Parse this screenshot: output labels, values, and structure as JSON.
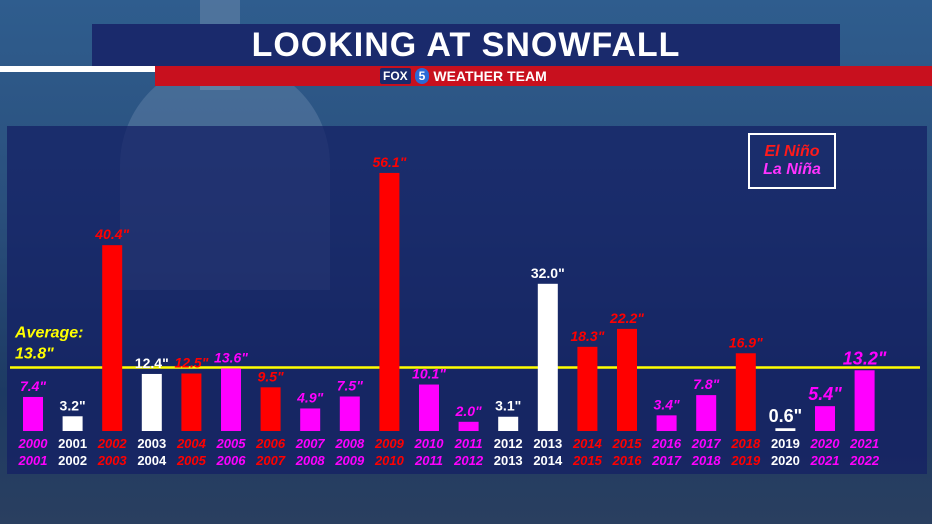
{
  "header": {
    "title": "LOOKING AT SNOWFALL"
  },
  "brand": {
    "fox": "FOX",
    "five": "5",
    "weather": "WEATHER",
    "team": "TEAM"
  },
  "colors": {
    "el_nino": "#ff0000",
    "la_nina": "#ff00ff",
    "neutral": "#ffffff",
    "average_line": "#ffff00"
  },
  "chart_data": {
    "type": "bar",
    "title": "LOOKING AT SNOWFALL",
    "average": {
      "label": "Average:",
      "value": 13.8,
      "display": "13.8\""
    },
    "legend": [
      {
        "name": "El Niño",
        "color": "#ff0000"
      },
      {
        "name": "La Niña",
        "color": "#ff00ff"
      }
    ],
    "legend_placement": "top-right",
    "ylim": [
      0,
      60
    ],
    "bars": [
      {
        "years": [
          "2000",
          "2001"
        ],
        "value": 7.4,
        "label": "7.4\"",
        "phase": "la_nina"
      },
      {
        "years": [
          "2001",
          "2002"
        ],
        "value": 3.2,
        "label": "3.2\"",
        "phase": "neutral"
      },
      {
        "years": [
          "2002",
          "2003"
        ],
        "value": 40.4,
        "label": "40.4\"",
        "phase": "el_nino"
      },
      {
        "years": [
          "2003",
          "2004"
        ],
        "value": 12.4,
        "label": "12.4\"",
        "phase": "neutral"
      },
      {
        "years": [
          "2004",
          "2005"
        ],
        "value": 12.5,
        "label": "12.5\"",
        "phase": "el_nino"
      },
      {
        "years": [
          "2005",
          "2006"
        ],
        "value": 13.6,
        "label": "13.6\"",
        "phase": "la_nina"
      },
      {
        "years": [
          "2006",
          "2007"
        ],
        "value": 9.5,
        "label": "9.5\"",
        "phase": "el_nino"
      },
      {
        "years": [
          "2007",
          "2008"
        ],
        "value": 4.9,
        "label": "4.9\"",
        "phase": "la_nina"
      },
      {
        "years": [
          "2008",
          "2009"
        ],
        "value": 7.5,
        "label": "7.5\"",
        "phase": "la_nina"
      },
      {
        "years": [
          "2009",
          "2010"
        ],
        "value": 56.1,
        "label": "56.1\"",
        "phase": "el_nino"
      },
      {
        "years": [
          "2010",
          "2011"
        ],
        "value": 10.1,
        "label": "10.1\"",
        "phase": "la_nina"
      },
      {
        "years": [
          "2011",
          "2012"
        ],
        "value": 2.0,
        "label": "2.0\"",
        "phase": "la_nina"
      },
      {
        "years": [
          "2012",
          "2013"
        ],
        "value": 3.1,
        "label": "3.1\"",
        "phase": "neutral"
      },
      {
        "years": [
          "2013",
          "2014"
        ],
        "value": 32.0,
        "label": "32.0\"",
        "phase": "neutral"
      },
      {
        "years": [
          "2014",
          "2015"
        ],
        "value": 18.3,
        "label": "18.3\"",
        "phase": "el_nino"
      },
      {
        "years": [
          "2015",
          "2016"
        ],
        "value": 22.2,
        "label": "22.2\"",
        "phase": "el_nino"
      },
      {
        "years": [
          "2016",
          "2017"
        ],
        "value": 3.4,
        "label": "3.4\"",
        "phase": "la_nina"
      },
      {
        "years": [
          "2017",
          "2018"
        ],
        "value": 7.8,
        "label": "7.8\"",
        "phase": "la_nina"
      },
      {
        "years": [
          "2018",
          "2019"
        ],
        "value": 16.9,
        "label": "16.9\"",
        "phase": "el_nino"
      },
      {
        "years": [
          "2019",
          "2020"
        ],
        "value": 0.6,
        "label": "0.6\"",
        "phase": "neutral"
      },
      {
        "years": [
          "2020",
          "2021"
        ],
        "value": 5.4,
        "label": "5.4\"",
        "phase": "la_nina"
      },
      {
        "years": [
          "2021",
          "2022"
        ],
        "value": 13.2,
        "label": "13.2\"",
        "phase": "la_nina"
      }
    ]
  }
}
